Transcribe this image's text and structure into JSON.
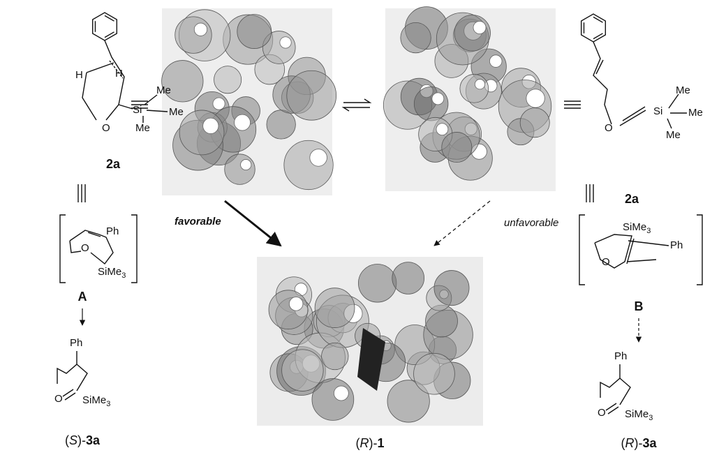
{
  "left": {
    "structure": {
      "atoms": [
        "H",
        "H",
        "Si",
        "Me",
        "Me",
        "Me",
        "O"
      ],
      "label": "2a"
    },
    "intermediate": {
      "atoms": [
        "Ph",
        "O"
      ],
      "silyl": [
        "SiMe",
        "3"
      ],
      "label": "A"
    },
    "product": {
      "atoms": [
        "Ph",
        "O"
      ],
      "silyl": [
        "SiMe",
        "3"
      ],
      "label": [
        "(",
        "S",
        ")-",
        "3a"
      ]
    }
  },
  "center": {
    "favorable": "favorable",
    "unfavorable": "unfavorable",
    "product_label": [
      "(",
      "R",
      ")-",
      "1"
    ]
  },
  "right": {
    "structure": {
      "atoms": [
        "O",
        "Si",
        "Me",
        "Me",
        "Me"
      ],
      "label": "2a"
    },
    "intermediate": {
      "silyl": [
        "SiMe",
        "3"
      ],
      "atoms": [
        "Ph",
        "O"
      ],
      "label": "B"
    },
    "product": {
      "atoms": [
        "Ph",
        "O"
      ],
      "silyl": [
        "SiMe",
        "3"
      ],
      "label": [
        "(",
        "R",
        ")-",
        "3a"
      ]
    }
  }
}
